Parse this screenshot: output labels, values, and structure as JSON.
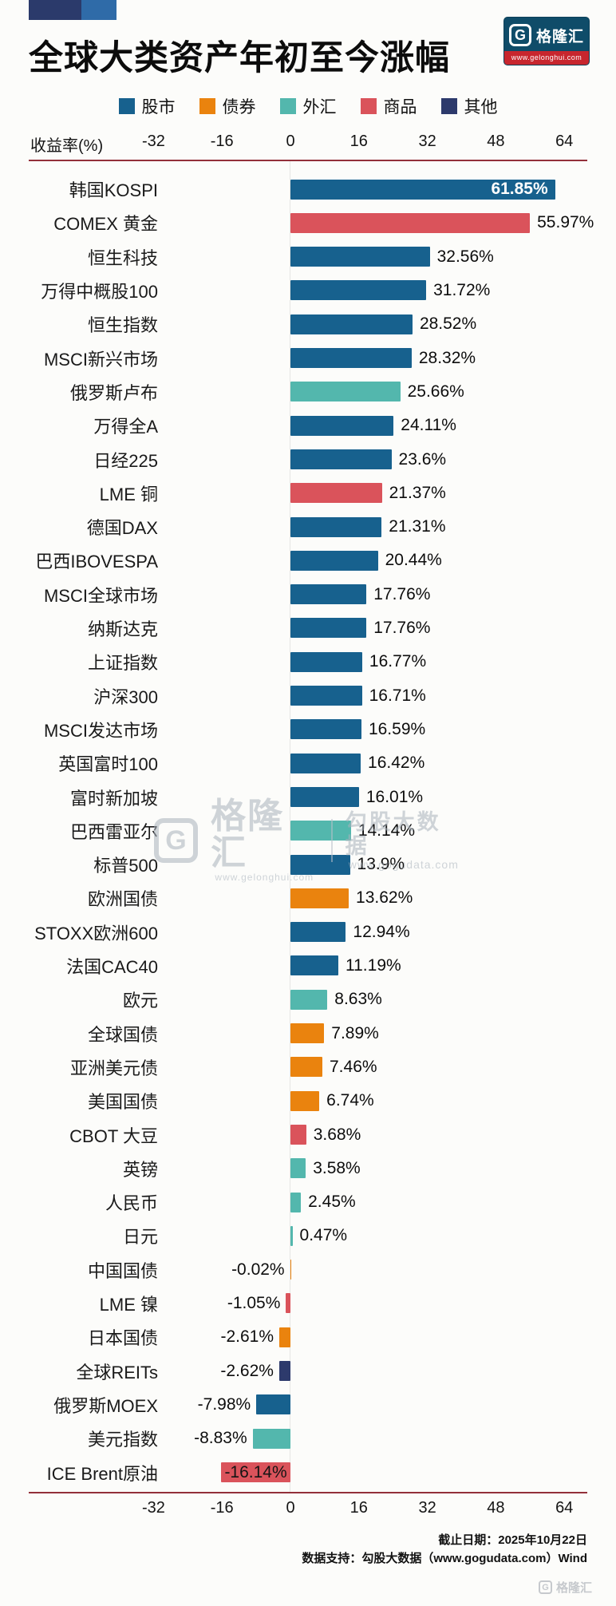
{
  "header": {
    "title": "全球大类资产年初至今涨幅",
    "logo": {
      "g": "G",
      "brand": "格隆汇",
      "url": "www.gelonghui.com"
    }
  },
  "watermark": {
    "g": "G",
    "brand": "格隆汇",
    "brand_url": "www.gelonghui.com",
    "partner": "勾股大数据",
    "partner_url": "www.gogudata.com"
  },
  "footer": {
    "date_line": "截止日期：2025年10月22日",
    "source_line": "数据支持：勾股大数据（www.gogudata.com）Wind"
  },
  "corner": {
    "g": "G",
    "brand": "格隆汇"
  },
  "chart_data": {
    "type": "bar",
    "orientation": "horizontal",
    "title": "全球大类资产年初至今涨幅",
    "xlabel": "收益率(%)",
    "xlim": [
      -40,
      72
    ],
    "xticks": [
      -32,
      -16,
      0,
      16,
      32,
      48,
      64
    ],
    "grid": false,
    "legend_position": "top",
    "groups": [
      "股市",
      "债券",
      "外汇",
      "商品",
      "其他"
    ],
    "colors": {
      "股市": "#17618E",
      "债券": "#EA830E",
      "外汇": "#53B7AD",
      "商品": "#DA535B",
      "其他": "#2D3A6C"
    },
    "bars": [
      {
        "name": "韩国KOSPI",
        "value": 61.85,
        "label": "61.85%",
        "group": "股市",
        "label_inside": true,
        "label_color": "#ffffff"
      },
      {
        "name": "COMEX 黄金",
        "value": 55.97,
        "label": "55.97%",
        "group": "商品"
      },
      {
        "name": "恒生科技",
        "value": 32.56,
        "label": "32.56%",
        "group": "股市"
      },
      {
        "name": "万得中概股100",
        "value": 31.72,
        "label": "31.72%",
        "group": "股市"
      },
      {
        "name": "恒生指数",
        "value": 28.52,
        "label": "28.52%",
        "group": "股市"
      },
      {
        "name": "MSCI新兴市场",
        "value": 28.32,
        "label": "28.32%",
        "group": "股市"
      },
      {
        "name": "俄罗斯卢布",
        "value": 25.66,
        "label": "25.66%",
        "group": "外汇"
      },
      {
        "name": "万得全A",
        "value": 24.11,
        "label": "24.11%",
        "group": "股市"
      },
      {
        "name": "日经225",
        "value": 23.6,
        "label": "23.6%",
        "group": "股市"
      },
      {
        "name": "LME 铜",
        "value": 21.37,
        "label": "21.37%",
        "group": "商品"
      },
      {
        "name": "德国DAX",
        "value": 21.31,
        "label": "21.31%",
        "group": "股市"
      },
      {
        "name": "巴西IBOVESPA",
        "value": 20.44,
        "label": "20.44%",
        "group": "股市"
      },
      {
        "name": "MSCI全球市场",
        "value": 17.76,
        "label": "17.76%",
        "group": "股市"
      },
      {
        "name": "纳斯达克",
        "value": 17.76,
        "label": "17.76%",
        "group": "股市"
      },
      {
        "name": "上证指数",
        "value": 16.77,
        "label": "16.77%",
        "group": "股市"
      },
      {
        "name": "沪深300",
        "value": 16.71,
        "label": "16.71%",
        "group": "股市"
      },
      {
        "name": "MSCI发达市场",
        "value": 16.59,
        "label": "16.59%",
        "group": "股市"
      },
      {
        "name": "英国富时100",
        "value": 16.42,
        "label": "16.42%",
        "group": "股市"
      },
      {
        "name": "富时新加坡",
        "value": 16.01,
        "label": "16.01%",
        "group": "股市"
      },
      {
        "name": "巴西雷亚尔",
        "value": 14.14,
        "label": "14.14%",
        "group": "外汇"
      },
      {
        "name": "标普500",
        "value": 13.9,
        "label": "13.9%",
        "group": "股市"
      },
      {
        "name": "欧洲国债",
        "value": 13.62,
        "label": "13.62%",
        "group": "债券"
      },
      {
        "name": "STOXX欧洲600",
        "value": 12.94,
        "label": "12.94%",
        "group": "股市"
      },
      {
        "name": "法国CAC40",
        "value": 11.19,
        "label": "11.19%",
        "group": "股市"
      },
      {
        "name": "欧元",
        "value": 8.63,
        "label": "8.63%",
        "group": "外汇"
      },
      {
        "name": "全球国债",
        "value": 7.89,
        "label": "7.89%",
        "group": "债券"
      },
      {
        "name": "亚洲美元债",
        "value": 7.46,
        "label": "7.46%",
        "group": "债券"
      },
      {
        "name": "美国国债",
        "value": 6.74,
        "label": "6.74%",
        "group": "债券"
      },
      {
        "name": "CBOT 大豆",
        "value": 3.68,
        "label": "3.68%",
        "group": "商品"
      },
      {
        "name": "英镑",
        "value": 3.58,
        "label": "3.58%",
        "group": "外汇"
      },
      {
        "name": "人民币",
        "value": 2.45,
        "label": "2.45%",
        "group": "外汇"
      },
      {
        "name": "日元",
        "value": 0.47,
        "label": "0.47%",
        "group": "外汇"
      },
      {
        "name": "中国国债",
        "value": -0.02,
        "label": "-0.02%",
        "group": "债券"
      },
      {
        "name": "LME 镍",
        "value": -1.05,
        "label": "-1.05%",
        "group": "商品"
      },
      {
        "name": "日本国债",
        "value": -2.61,
        "label": "-2.61%",
        "group": "债券"
      },
      {
        "name": "全球REITs",
        "value": -2.62,
        "label": "-2.62%",
        "group": "其他"
      },
      {
        "name": "俄罗斯MOEX",
        "value": -7.98,
        "label": "-7.98%",
        "group": "股市"
      },
      {
        "name": "美元指数",
        "value": -8.83,
        "label": "-8.83%",
        "group": "外汇"
      },
      {
        "name": "ICE Brent原油",
        "value": -16.14,
        "label": "-16.14%",
        "group": "商品",
        "label_inside": true,
        "label_color": "#141414"
      }
    ]
  }
}
